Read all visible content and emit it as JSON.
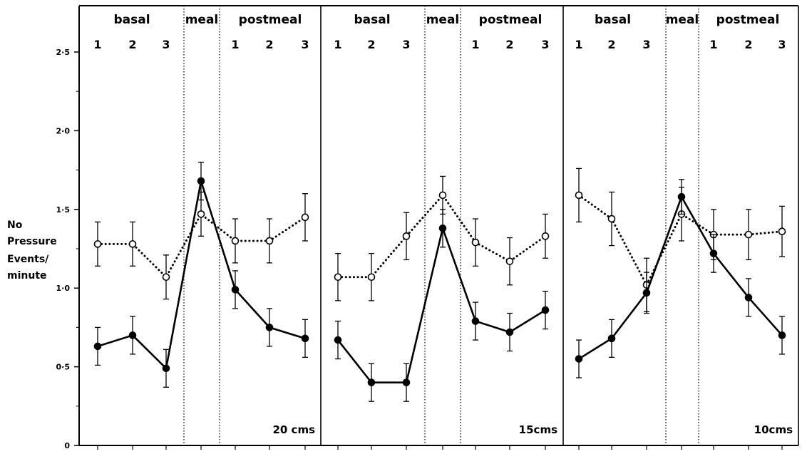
{
  "chart_data": {
    "type": "line",
    "ylabel_lines": [
      "No",
      "Pressure",
      "Events/",
      "minute"
    ],
    "ylim": [
      0,
      2.75
    ],
    "yticks": [
      {
        "value": 0,
        "label": "0"
      },
      {
        "value": 0.5,
        "label": "0·5"
      },
      {
        "value": 1.0,
        "label": "1·0"
      },
      {
        "value": 1.5,
        "label": "1·5"
      },
      {
        "value": 2.0,
        "label": "2·0"
      },
      {
        "value": 2.5,
        "label": "2·5"
      }
    ],
    "phase_labels": {
      "basal": "basal",
      "meal": "meal",
      "postmeal": "postmeal"
    },
    "point_labels": [
      "1",
      "2",
      "3",
      "",
      "1",
      "2",
      "3"
    ],
    "panels": [
      {
        "condition_label": "20 cms",
        "series": [
          {
            "marker": "open",
            "line": "dotted",
            "values": [
              1.28,
              1.28,
              1.07,
              1.47,
              1.3,
              1.3,
              1.45
            ],
            "errors": [
              0.14,
              0.14,
              0.14,
              0.14,
              0.14,
              0.14,
              0.15
            ]
          },
          {
            "marker": "filled",
            "line": "solid",
            "values": [
              0.63,
              0.7,
              0.49,
              1.68,
              0.99,
              0.75,
              0.68
            ],
            "errors": [
              0.12,
              0.12,
              0.12,
              0.12,
              0.12,
              0.12,
              0.12
            ]
          }
        ]
      },
      {
        "condition_label": "15cms",
        "series": [
          {
            "marker": "open",
            "line": "dotted",
            "values": [
              1.07,
              1.07,
              1.33,
              1.59,
              1.29,
              1.17,
              1.33
            ],
            "errors": [
              0.15,
              0.15,
              0.15,
              0.12,
              0.15,
              0.15,
              0.14
            ]
          },
          {
            "marker": "filled",
            "line": "solid",
            "values": [
              0.67,
              0.4,
              0.4,
              1.38,
              0.79,
              0.72,
              0.86
            ],
            "errors": [
              0.12,
              0.12,
              0.12,
              0.12,
              0.12,
              0.12,
              0.12
            ]
          }
        ]
      },
      {
        "condition_label": "10cms",
        "series": [
          {
            "marker": "open",
            "line": "dotted",
            "values": [
              1.59,
              1.44,
              1.02,
              1.47,
              1.34,
              1.34,
              1.36
            ],
            "errors": [
              0.17,
              0.17,
              0.17,
              0.17,
              0.16,
              0.16,
              0.16
            ]
          },
          {
            "marker": "filled",
            "line": "solid",
            "values": [
              0.55,
              0.68,
              0.97,
              1.58,
              1.22,
              0.94,
              0.7
            ],
            "errors": [
              0.12,
              0.12,
              0.13,
              0.11,
              0.12,
              0.12,
              0.12
            ]
          }
        ]
      }
    ]
  }
}
